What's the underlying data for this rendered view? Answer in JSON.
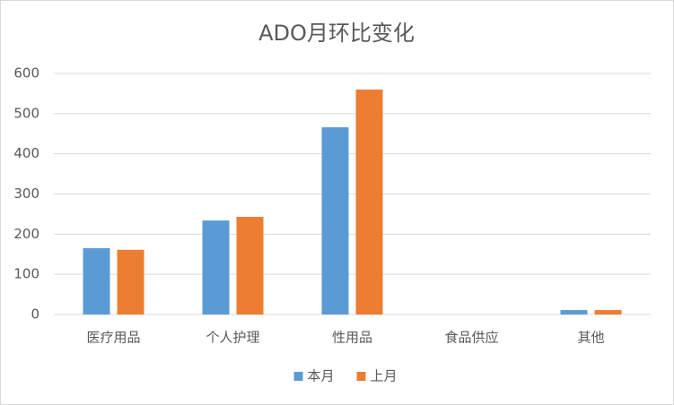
{
  "chart_data": {
    "type": "bar",
    "title": "ADO月环比变化",
    "categories": [
      "医疗用品",
      "个人护理",
      "性用品",
      "食品供应",
      "其他"
    ],
    "series": [
      {
        "name": "本月",
        "color": "#5b9bd5",
        "values": [
          165,
          234,
          466,
          0,
          11
        ]
      },
      {
        "name": "上月",
        "color": "#ed7d31",
        "values": [
          161,
          243,
          560,
          0,
          11
        ]
      }
    ],
    "ylim": [
      0,
      600
    ],
    "yticks": [
      0,
      100,
      200,
      300,
      400,
      500,
      600
    ],
    "grid": true,
    "legend": "bottom"
  }
}
